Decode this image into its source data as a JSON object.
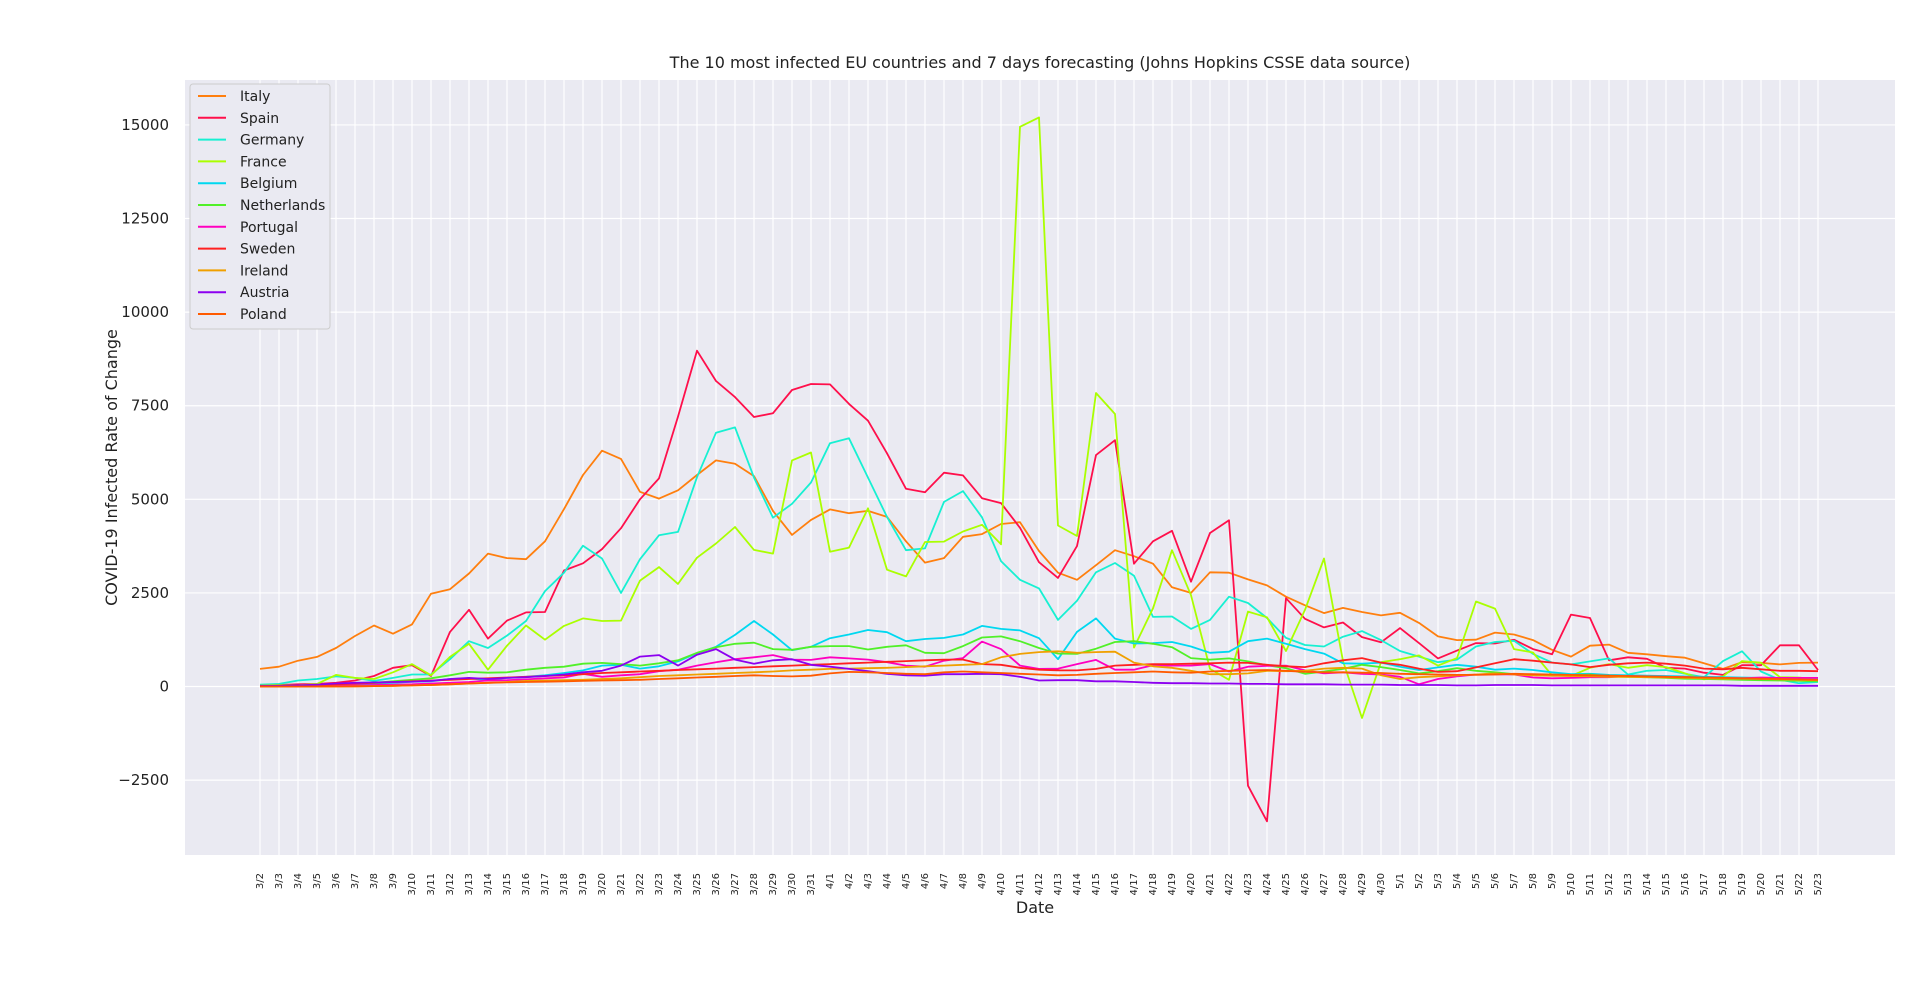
{
  "chart_data": {
    "type": "line",
    "title": "The 10 most infected EU countries and 7 days forecasting (Johns Hopkins CSSE data source)",
    "xlabel": "Date",
    "ylabel": "COVID-19 Infected Rate of Change",
    "ylim": [
      -4500,
      16200
    ],
    "yticks": [
      -2500,
      0,
      2500,
      5000,
      7500,
      10000,
      12500,
      15000
    ],
    "yticklabels": [
      "−2500",
      "0",
      "2500",
      "5000",
      "7500",
      "10000",
      "12500",
      "15000"
    ],
    "grid": true,
    "legend_position": "top-left",
    "background": "#eaeaf2",
    "categories": [
      "3/2",
      "3/3",
      "3/4",
      "3/5",
      "3/6",
      "3/7",
      "3/8",
      "3/9",
      "3/10",
      "3/11",
      "3/12",
      "3/13",
      "3/14",
      "3/15",
      "3/16",
      "3/17",
      "3/18",
      "3/19",
      "3/20",
      "3/21",
      "3/22",
      "3/23",
      "3/24",
      "3/25",
      "3/26",
      "3/27",
      "3/28",
      "3/29",
      "3/30",
      "3/31",
      "4/1",
      "4/2",
      "4/3",
      "4/4",
      "4/5",
      "4/6",
      "4/7",
      "4/8",
      "4/9",
      "4/10",
      "4/11",
      "4/12",
      "4/13",
      "4/14",
      "4/15",
      "4/16",
      "4/17",
      "4/18",
      "4/19",
      "4/20",
      "4/21",
      "4/22",
      "4/23",
      "4/24",
      "4/25",
      "4/26",
      "4/27",
      "4/28",
      "4/29",
      "4/30",
      "5/1",
      "5/2",
      "5/3",
      "5/4",
      "5/5",
      "5/6",
      "5/7",
      "5/8",
      "5/9",
      "5/10",
      "5/11",
      "5/12",
      "5/13",
      "5/14",
      "5/15",
      "5/16",
      "5/17",
      "5/18",
      "5/19",
      "5/20",
      "5/21",
      "5/22",
      "5/23"
    ],
    "series": [
      {
        "name": "Italy",
        "color": "#ff7f0e",
        "values": [
          470,
          530,
          690,
          790,
          1030,
          1350,
          1630,
          1410,
          1660,
          2480,
          2600,
          3020,
          3550,
          3430,
          3400,
          3880,
          4740,
          5650,
          6300,
          6080,
          5200,
          5020,
          5240,
          5650,
          6040,
          5950,
          5620,
          4690,
          4050,
          4450,
          4730,
          4630,
          4690,
          4530,
          3880,
          3310,
          3430,
          4000,
          4070,
          4340,
          4390,
          3620,
          3040,
          2850,
          3240,
          3640,
          3480,
          3280,
          2650,
          2500,
          3050,
          3040,
          2860,
          2700,
          2400,
          2170,
          1960,
          2100,
          1990,
          1900,
          1970,
          1700,
          1340,
          1240,
          1250,
          1440,
          1390,
          1240,
          980,
          800,
          1090,
          1120,
          900,
          860,
          810,
          770,
          620,
          470,
          650,
          630,
          590,
          630,
          640
        ]
      },
      {
        "name": "Spain",
        "color": "#ff0f4b",
        "values": [
          30,
          40,
          60,
          70,
          100,
          160,
          280,
          500,
          570,
          280,
          1460,
          2050,
          1280,
          1760,
          1980,
          1990,
          3100,
          3290,
          3670,
          4230,
          5000,
          5560,
          7210,
          8970,
          8160,
          7730,
          7200,
          7300,
          7920,
          8080,
          8070,
          7550,
          7100,
          6230,
          5280,
          5190,
          5710,
          5640,
          5030,
          4900,
          4240,
          3320,
          2900,
          3750,
          6180,
          6580,
          3280,
          3880,
          4160,
          2800,
          4100,
          4440,
          -2650,
          -3600,
          2360,
          1810,
          1580,
          1710,
          1320,
          1180,
          1560,
          1160,
          750,
          960,
          1160,
          1150,
          1250,
          1000,
          860,
          1920,
          1830,
          700,
          780,
          740,
          500,
          480,
          370,
          310,
          570,
          570,
          1100,
          1100,
          440
        ]
      },
      {
        "name": "Germany",
        "color": "#17f0d2",
        "values": [
          50,
          70,
          160,
          200,
          270,
          230,
          150,
          230,
          320,
          320,
          730,
          1210,
          1030,
          1360,
          1750,
          2550,
          3040,
          3760,
          3420,
          2500,
          3400,
          4040,
          4130,
          5590,
          6780,
          6920,
          5580,
          4510,
          4880,
          5450,
          6500,
          6630,
          5580,
          4530,
          3640,
          3690,
          4930,
          5220,
          4520,
          3350,
          2850,
          2620,
          1780,
          2290,
          3050,
          3300,
          2960,
          1860,
          1870,
          1540,
          1780,
          2400,
          2230,
          1830,
          1300,
          1110,
          1070,
          1330,
          1480,
          1240,
          950,
          800,
          650,
          720,
          1070,
          1190,
          1220,
          870,
          640,
          590,
          670,
          750,
          320,
          420,
          440,
          340,
          250,
          680,
          940,
          400,
          180,
          90,
          120
        ]
      },
      {
        "name": "France",
        "color": "#aaff00",
        "values": [
          20,
          40,
          30,
          70,
          310,
          230,
          200,
          380,
          600,
          300,
          790,
          1140,
          450,
          1090,
          1630,
          1250,
          1620,
          1820,
          1750,
          1760,
          2830,
          3190,
          2740,
          3440,
          3820,
          4260,
          3650,
          3550,
          6040,
          6250,
          3600,
          3710,
          4760,
          3120,
          2940,
          3860,
          3870,
          4140,
          4320,
          3800,
          14950,
          15200,
          4300,
          4020,
          7840,
          7280,
          1040,
          2090,
          3640,
          2440,
          470,
          180,
          2000,
          1850,
          950,
          2050,
          3420,
          680,
          -840,
          650,
          730,
          830,
          560,
          760,
          2270,
          2080,
          1000,
          910,
          300,
          280,
          500,
          600,
          500,
          570,
          520,
          350,
          190,
          270,
          680,
          640,
          250,
          240,
          180
        ]
      },
      {
        "name": "Belgium",
        "color": "#00d8f0",
        "values": [
          0,
          10,
          20,
          40,
          60,
          70,
          80,
          100,
          130,
          140,
          200,
          220,
          170,
          230,
          260,
          300,
          360,
          430,
          560,
          580,
          480,
          540,
          670,
          890,
          1060,
          1380,
          1750,
          1390,
          970,
          1060,
          1290,
          1390,
          1510,
          1450,
          1210,
          1270,
          1300,
          1390,
          1620,
          1540,
          1500,
          1290,
          730,
          1460,
          1820,
          1280,
          1150,
          1160,
          1190,
          1070,
          900,
          930,
          1210,
          1280,
          1140,
          1000,
          880,
          620,
          610,
          640,
          530,
          440,
          510,
          580,
          530,
          450,
          480,
          440,
          380,
          330,
          340,
          310,
          300,
          290,
          280,
          270,
          260,
          250,
          240,
          230,
          220,
          210,
          200
        ]
      },
      {
        "name": "Netherlands",
        "color": "#51f028",
        "values": [
          10,
          20,
          30,
          40,
          60,
          80,
          100,
          140,
          180,
          220,
          300,
          390,
          370,
          380,
          450,
          500,
          530,
          610,
          630,
          600,
          560,
          620,
          700,
          900,
          1050,
          1140,
          1170,
          1000,
          980,
          1060,
          1080,
          1080,
          990,
          1060,
          1100,
          900,
          890,
          1080,
          1310,
          1340,
          1210,
          1030,
          880,
          870,
          1010,
          1190,
          1210,
          1140,
          1050,
          760,
          720,
          750,
          670,
          570,
          490,
          340,
          400,
          470,
          580,
          520,
          440,
          350,
          410,
          490,
          420,
          380,
          330,
          320,
          290,
          300,
          320,
          270,
          260,
          250,
          230,
          210,
          200,
          190,
          180,
          170,
          160,
          150,
          140
        ]
      },
      {
        "name": "Portugal",
        "color": "#ff00c0",
        "values": [
          0,
          2,
          5,
          10,
          20,
          30,
          40,
          50,
          60,
          80,
          100,
          120,
          160,
          170,
          190,
          220,
          240,
          340,
          260,
          300,
          330,
          410,
          450,
          560,
          650,
          730,
          780,
          840,
          720,
          710,
          780,
          750,
          720,
          650,
          560,
          530,
          690,
          760,
          1200,
          1000,
          560,
          470,
          480,
          600,
          710,
          450,
          450,
          570,
          560,
          560,
          600,
          400,
          530,
          550,
          560,
          430,
          350,
          380,
          340,
          320,
          260,
          60,
          200,
          270,
          320,
          330,
          320,
          240,
          220,
          230,
          250,
          250,
          280,
          270,
          260,
          250,
          240,
          230,
          220,
          240,
          230,
          230,
          230
        ]
      },
      {
        "name": "Sweden",
        "color": "#ff2020",
        "values": [
          20,
          20,
          30,
          40,
          60,
          80,
          100,
          120,
          140,
          160,
          180,
          200,
          220,
          240,
          260,
          280,
          300,
          330,
          360,
          380,
          400,
          420,
          440,
          460,
          480,
          500,
          520,
          540,
          560,
          580,
          600,
          620,
          640,
          660,
          680,
          700,
          720,
          720,
          600,
          580,
          500,
          450,
          430,
          430,
          470,
          560,
          580,
          600,
          600,
          610,
          620,
          640,
          630,
          580,
          540,
          520,
          620,
          700,
          760,
          640,
          580,
          480,
          390,
          410,
          510,
          620,
          730,
          690,
          640,
          590,
          520,
          580,
          620,
          640,
          610,
          560,
          480,
          460,
          500,
          460,
          420,
          420,
          410
        ]
      },
      {
        "name": "Ireland",
        "color": "#f0a000",
        "values": [
          0,
          0,
          0,
          0,
          2,
          5,
          10,
          20,
          30,
          40,
          60,
          80,
          100,
          120,
          150,
          160,
          170,
          180,
          200,
          220,
          250,
          280,
          300,
          320,
          340,
          360,
          380,
          400,
          430,
          450,
          470,
          480,
          490,
          500,
          520,
          540,
          560,
          580,
          600,
          780,
          870,
          920,
          940,
          900,
          920,
          930,
          640,
          540,
          500,
          420,
          330,
          330,
          350,
          420,
          410,
          420,
          480,
          500,
          480,
          300,
          200,
          250,
          270,
          300,
          320,
          350,
          320,
          300,
          290,
          280,
          270,
          260,
          260,
          250,
          240,
          230,
          220,
          210,
          210,
          200,
          190,
          180,
          170
        ]
      },
      {
        "name": "Austria",
        "color": "#8c00f0",
        "values": [
          10,
          20,
          30,
          50,
          80,
          100,
          110,
          120,
          130,
          150,
          200,
          230,
          200,
          230,
          250,
          280,
          320,
          380,
          420,
          560,
          800,
          840,
          560,
          850,
          1000,
          720,
          610,
          700,
          730,
          580,
          530,
          470,
          410,
          340,
          300,
          290,
          330,
          330,
          340,
          330,
          260,
          160,
          170,
          170,
          140,
          140,
          120,
          100,
          90,
          90,
          80,
          80,
          70,
          70,
          60,
          60,
          60,
          50,
          50,
          50,
          40,
          40,
          40,
          30,
          30,
          40,
          40,
          40,
          30,
          30,
          30,
          30,
          30,
          30,
          30,
          30,
          30,
          30,
          20,
          20,
          20,
          20,
          20
        ]
      },
      {
        "name": "Poland",
        "color": "#ff5a00",
        "values": [
          0,
          0,
          0,
          0,
          0,
          5,
          10,
          20,
          30,
          40,
          60,
          80,
          100,
          110,
          120,
          130,
          140,
          150,
          160,
          170,
          180,
          200,
          220,
          240,
          260,
          280,
          300,
          280,
          270,
          290,
          350,
          390,
          380,
          360,
          340,
          330,
          380,
          400,
          380,
          360,
          340,
          320,
          300,
          310,
          340,
          360,
          380,
          400,
          380,
          370,
          400,
          420,
          430,
          440,
          420,
          390,
          380,
          380,
          370,
          360,
          340,
          330,
          320,
          310,
          310,
          320,
          340,
          330,
          320,
          310,
          300,
          290,
          280,
          270,
          260,
          250,
          240,
          230,
          220,
          210,
          200,
          190,
          180
        ]
      }
    ]
  }
}
